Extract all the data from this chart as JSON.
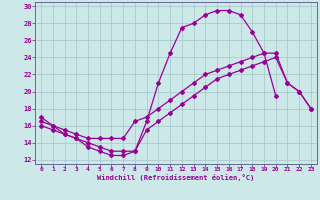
{
  "xlabel": "Windchill (Refroidissement éolien,°C)",
  "background_color": "#cce8e8",
  "grid_color": "#aacccc",
  "line_color": "#990099",
  "spine_color": "#666699",
  "xlim": [
    -0.5,
    23.5
  ],
  "ylim": [
    11.5,
    30.5
  ],
  "xticks": [
    0,
    1,
    2,
    3,
    4,
    5,
    6,
    7,
    8,
    9,
    10,
    11,
    12,
    13,
    14,
    15,
    16,
    17,
    18,
    19,
    20,
    21,
    22,
    23
  ],
  "yticks": [
    12,
    14,
    16,
    18,
    20,
    22,
    24,
    26,
    28,
    30
  ],
  "line1_x": [
    0,
    1,
    2,
    3,
    4,
    5,
    6,
    7,
    8,
    9,
    10,
    11,
    12,
    13,
    14,
    15,
    16,
    17,
    18,
    19,
    20
  ],
  "line1_y": [
    17,
    16,
    15,
    14.5,
    13.5,
    13,
    12.5,
    12.5,
    13,
    16.5,
    21,
    24.5,
    27.5,
    28,
    29,
    29.5,
    29.5,
    29,
    27,
    24.5,
    19.5
  ],
  "line2_x": [
    0,
    1,
    2,
    3,
    4,
    5,
    6,
    7,
    8,
    9,
    10,
    11,
    12,
    13,
    14,
    15,
    16,
    17,
    18,
    19,
    20,
    21,
    22,
    23
  ],
  "line2_y": [
    16.5,
    16,
    15.5,
    15,
    14.5,
    14.5,
    14.5,
    14.5,
    16.5,
    17,
    18,
    19,
    20,
    21,
    22,
    22.5,
    23,
    23.5,
    24,
    24.5,
    24.5,
    21,
    20,
    18
  ],
  "line3_x": [
    0,
    1,
    2,
    3,
    4,
    5,
    6,
    7,
    8,
    9,
    10,
    11,
    12,
    13,
    14,
    15,
    16,
    17,
    18,
    19,
    20,
    21,
    22,
    23
  ],
  "line3_y": [
    16,
    15.5,
    15,
    14.5,
    14,
    13.5,
    13,
    13,
    13,
    15.5,
    16.5,
    17.5,
    18.5,
    19.5,
    20.5,
    21.5,
    22,
    22.5,
    23,
    23.5,
    24,
    21,
    20,
    18
  ]
}
